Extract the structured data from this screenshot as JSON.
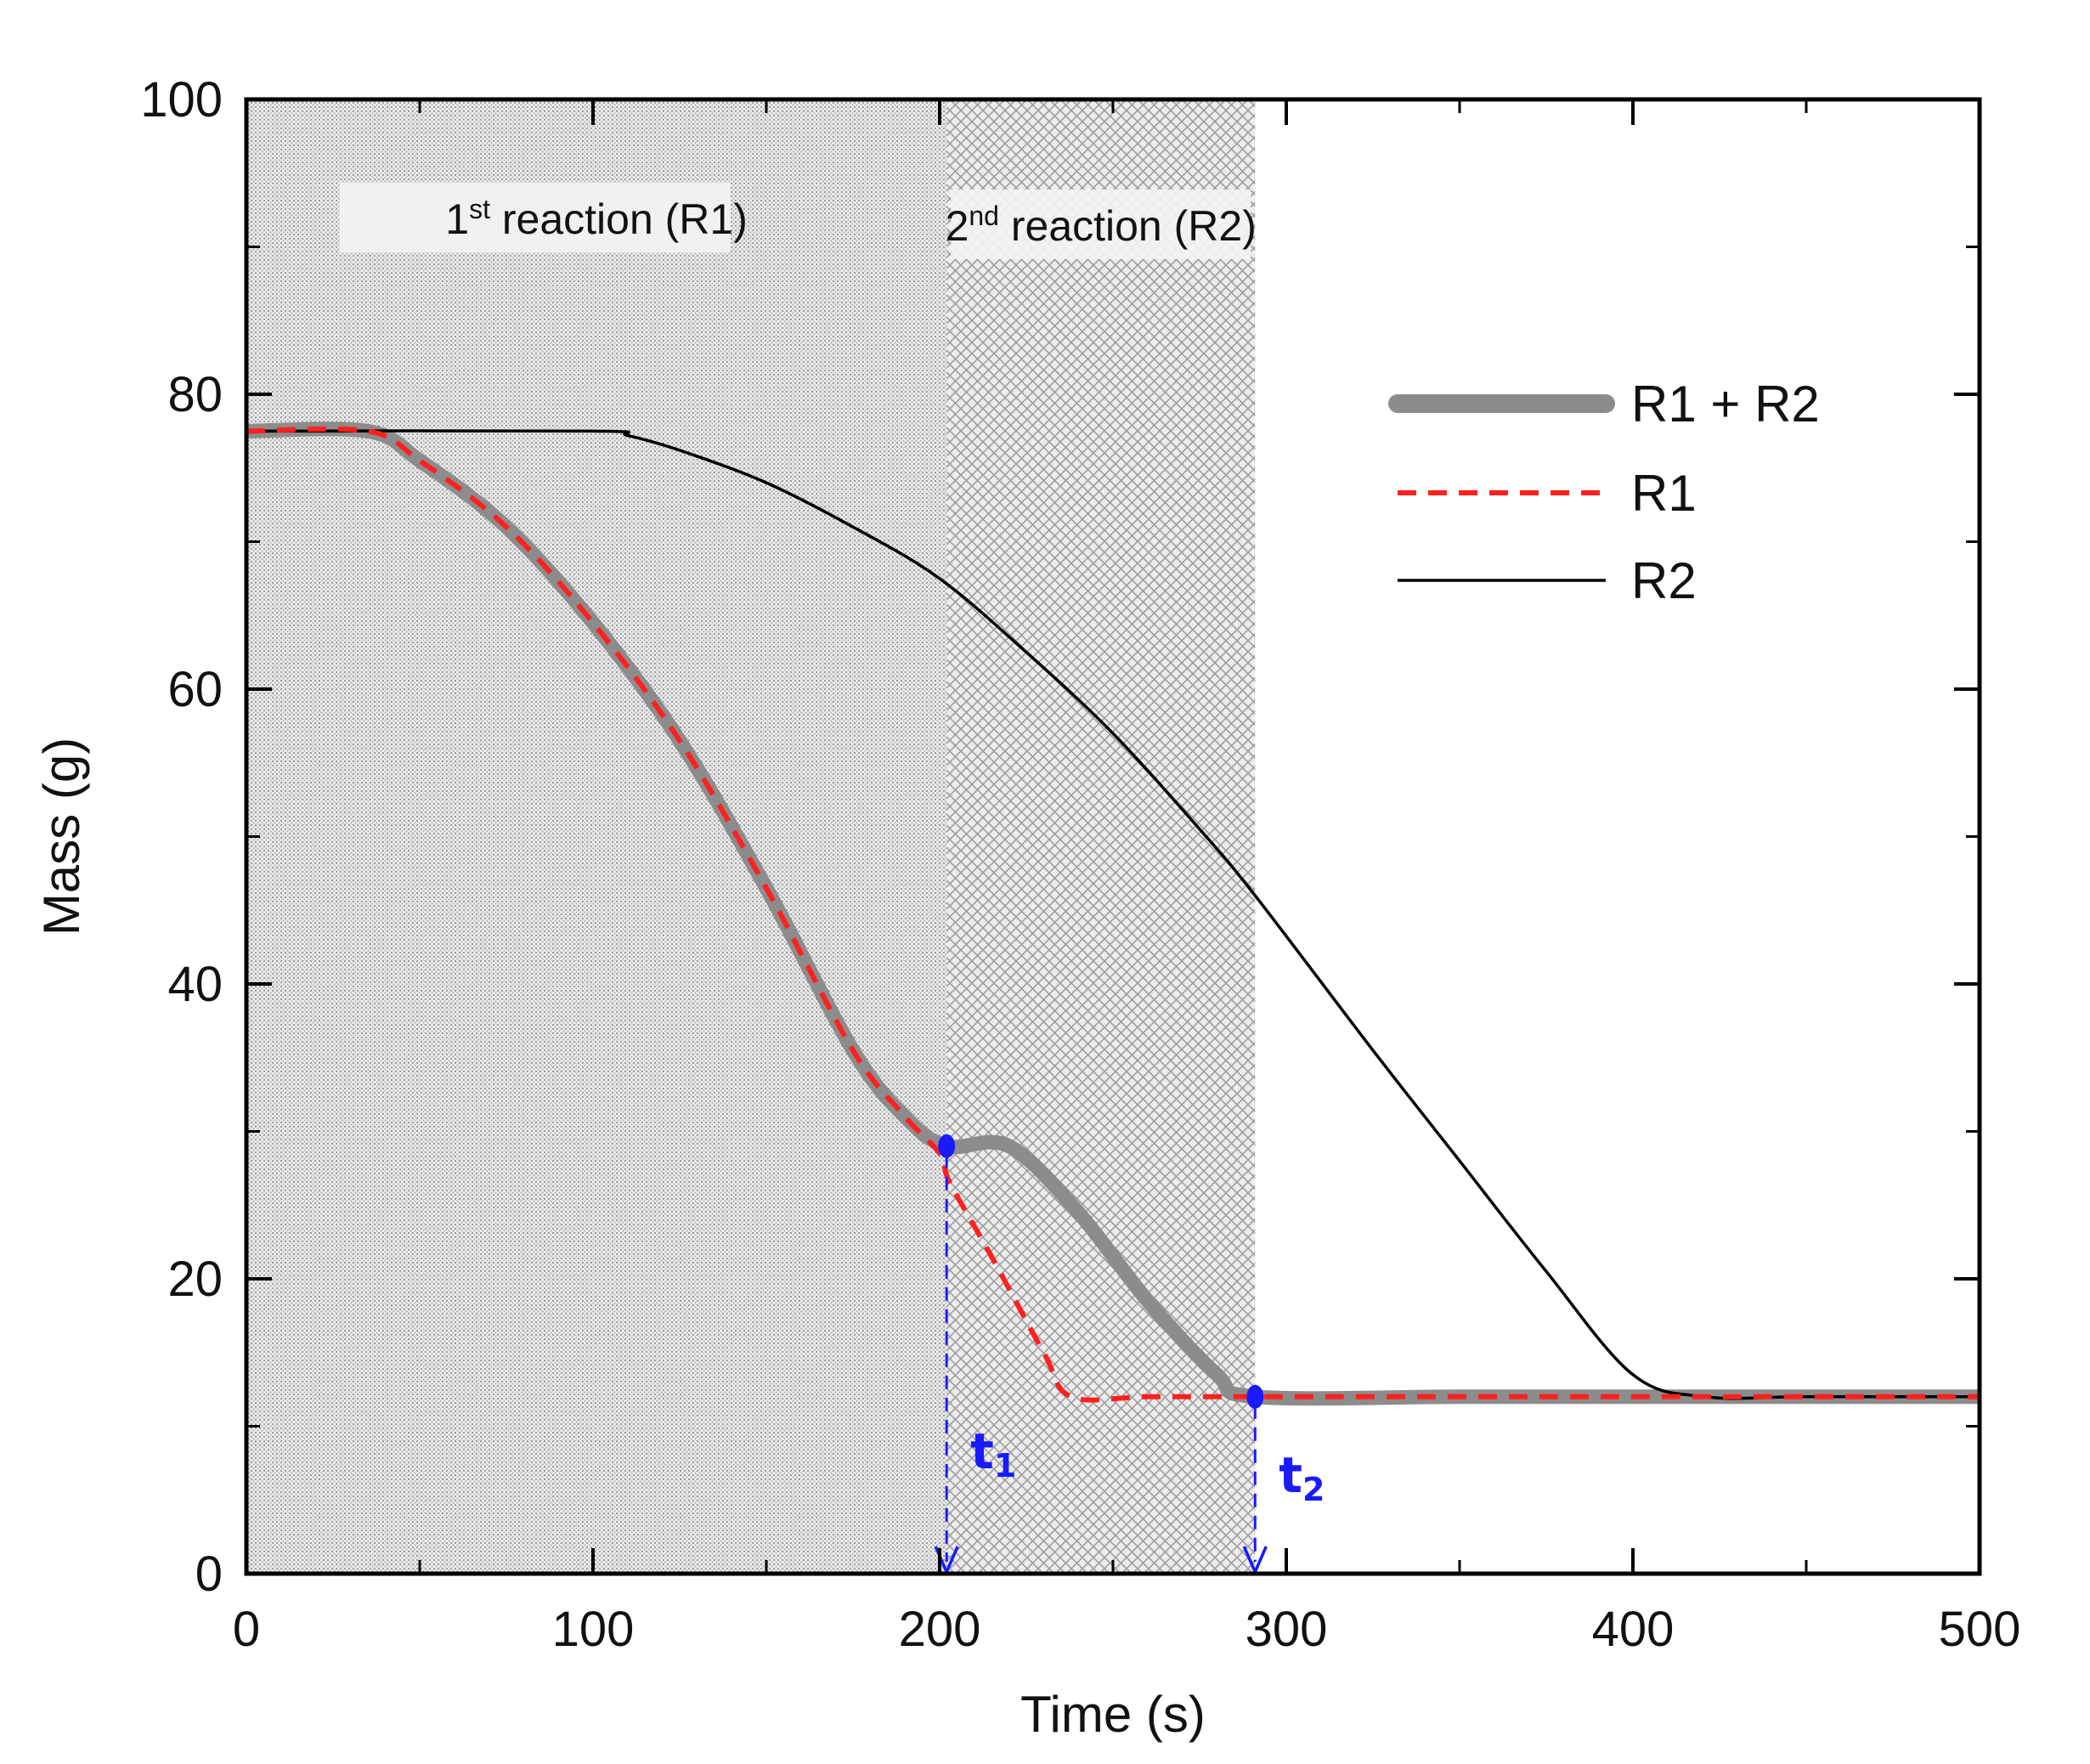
{
  "chart_data": {
    "type": "line",
    "xlabel": "Time (s)",
    "ylabel": "Mass (g)",
    "xlim": [
      0,
      500
    ],
    "ylim": [
      0,
      100
    ],
    "xticks": [
      0,
      100,
      200,
      300,
      400,
      500
    ],
    "yticks": [
      0,
      20,
      40,
      60,
      80,
      100
    ],
    "x_tick_labels": [
      "0",
      "100",
      "200",
      "300",
      "400",
      "500"
    ],
    "y_tick_labels": [
      "0",
      "20",
      "40",
      "60",
      "80",
      "100"
    ],
    "grid": false,
    "legend_position": "top-right",
    "regions": [
      {
        "name": "reaction-1-region",
        "x_start": 0,
        "x_end": 202,
        "label_num": "1",
        "label_sup": "st",
        "label_rest": " reaction (R1)"
      },
      {
        "name": "reaction-2-region",
        "x_start": 202,
        "x_end": 291,
        "label_num": "2",
        "label_sup": "nd",
        "label_rest": " reaction (R2)"
      }
    ],
    "series": [
      {
        "name": "R1 + R2",
        "color": "#8c8c8c",
        "style": "thick",
        "x": [
          0,
          35,
          50,
          75,
          100,
          125,
          150,
          175,
          190,
          202,
          220,
          240,
          260,
          280,
          291,
          350,
          400,
          450,
          500
        ],
        "y": [
          77.5,
          77.5,
          75.5,
          71,
          64.5,
          56.5,
          46.5,
          35.5,
          31,
          29,
          29,
          24.5,
          18.5,
          13.5,
          12,
          12,
          12,
          12,
          12
        ]
      },
      {
        "name": "R1",
        "color": "#ff2020",
        "style": "dashed",
        "x": [
          0,
          35,
          50,
          75,
          100,
          125,
          150,
          175,
          190,
          200,
          203,
          215,
          230,
          238,
          260,
          291,
          350,
          400,
          450,
          500
        ],
        "y": [
          77.5,
          77.5,
          75.5,
          71,
          64.5,
          56.5,
          46.5,
          35.5,
          31,
          28.5,
          26.5,
          21.5,
          15,
          12,
          12,
          12,
          12,
          12,
          12,
          12
        ]
      },
      {
        "name": "R2",
        "color": "#000000",
        "style": "solid",
        "x": [
          0,
          100,
          110,
          125,
          150,
          175,
          200,
          225,
          250,
          275,
          291,
          325,
          350,
          375,
          400,
          421,
          450,
          500
        ],
        "y": [
          77.5,
          77.5,
          77.2,
          76.2,
          74,
          71,
          67.5,
          62.5,
          57,
          50.5,
          46,
          35.5,
          28,
          20.5,
          13.5,
          12,
          12,
          12
        ]
      }
    ],
    "markers": [
      {
        "name": "t1",
        "label": "t",
        "sub": "1",
        "x": 202,
        "y": 29,
        "color": "#1a1aff"
      },
      {
        "name": "t2",
        "label": "t",
        "sub": "2",
        "x": 291,
        "y": 12,
        "color": "#1a1aff"
      }
    ]
  }
}
